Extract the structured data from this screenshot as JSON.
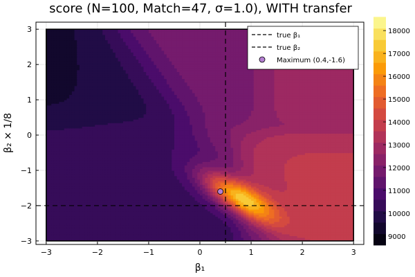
{
  "chart_data": {
    "type": "heatmap",
    "subtype": "filled-contour",
    "title": "score (N=100, Match=47, σ=1.0), WITH transfer",
    "xlabel": "β₁",
    "ylabel": "β₂ × 1/8",
    "xlim": [
      -3.2,
      3.2
    ],
    "ylim": [
      -3.1,
      3.2
    ],
    "xticks": [
      -3,
      -2,
      -1,
      0,
      1,
      2,
      3
    ],
    "xtick_labels": [
      "−3",
      "−2",
      "−1",
      "0",
      "1",
      "2",
      "3"
    ],
    "yticks": [
      -3,
      -2,
      -1,
      0,
      1,
      2,
      3
    ],
    "ytick_labels": [
      "−3",
      "−2",
      "−1",
      "0",
      "1",
      "2",
      "3"
    ],
    "grid": true,
    "legend_position": "top-right",
    "reference_lines": [
      {
        "name": "true β₁",
        "orientation": "vertical",
        "value": 0.5,
        "style": "dashed",
        "color": "#000000"
      },
      {
        "name": "true β₂",
        "orientation": "horizontal",
        "value": -2.0,
        "style": "dashed",
        "color": "#000000"
      }
    ],
    "points": [
      {
        "name": "Maximum (0.4,-1.6)",
        "x": 0.4,
        "y": -1.6,
        "color": "#b47fd2"
      }
    ],
    "colorbar": {
      "min": 8600,
      "max": 18400,
      "step": 500,
      "ticks": [
        9000,
        10000,
        11000,
        12000,
        13000,
        14000,
        15000,
        16000,
        17000,
        18000
      ],
      "tick_labels": [
        "9000",
        "10000",
        "11000",
        "12000",
        "13000",
        "14000",
        "15000",
        "16000",
        "17000",
        "18000"
      ],
      "colormap": "inferno",
      "stops": [
        "#000004",
        "#1b0c41",
        "#4a0c6b",
        "#781c6d",
        "#a52c60",
        "#cf4446",
        "#ed6925",
        "#fb9b06",
        "#f7d13d",
        "#fcffa4"
      ]
    }
  }
}
